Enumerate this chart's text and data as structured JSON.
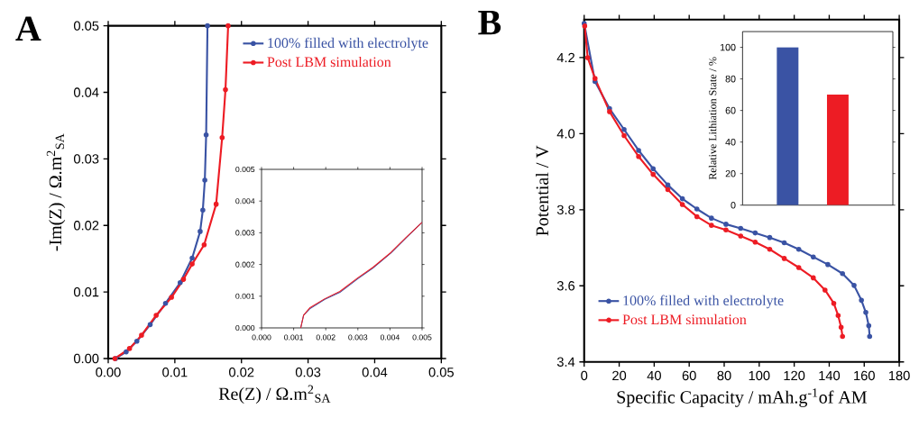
{
  "chart_data": [
    {
      "type": "line",
      "title": "A",
      "xlabel": "Re(Z) / Ω.m$^{2}$$_{SA}$",
      "ylabel": "-Im(Z) / Ω.m$^{2}$$_{SA}$",
      "xlim": [
        0,
        0.05
      ],
      "ylim": [
        0,
        0.05
      ],
      "xticks": [
        {
          "value": 0,
          "label": "0.00"
        },
        {
          "value": 0.01,
          "label": "0.01"
        },
        {
          "value": 0.02,
          "label": "0.02"
        },
        {
          "value": 0.03,
          "label": "0.03"
        },
        {
          "value": 0.04,
          "label": "0.04"
        },
        {
          "value": 0.05,
          "label": "0.05"
        }
      ],
      "yticks": [
        {
          "value": 0,
          "label": "0.00"
        },
        {
          "value": 0.01,
          "label": "0.01"
        },
        {
          "value": 0.02,
          "label": "0.02"
        },
        {
          "value": 0.03,
          "label": "0.03"
        },
        {
          "value": 0.04,
          "label": "0.04"
        },
        {
          "value": 0.05,
          "label": "0.05"
        }
      ],
      "legend": "top right",
      "marker": "circle",
      "series": [
        {
          "name": "100%  filled with electrolyte",
          "color": "#3a53a4",
          "x": [
            0.0011,
            0.0027,
            0.0043,
            0.0063,
            0.0086,
            0.0108,
            0.0126,
            0.0138,
            0.0142,
            0.0145,
            0.0147,
            0.0149
          ],
          "values": [
            0,
            0.001,
            0.0026,
            0.0051,
            0.0083,
            0.0114,
            0.0151,
            0.0191,
            0.0223,
            0.0268,
            0.0336,
            0.05
          ]
        },
        {
          "name": "Post LBM simulation",
          "color": "#ed1c24",
          "x": [
            0.001,
            0.0032,
            0.005,
            0.0072,
            0.0095,
            0.0113,
            0.0126,
            0.0144,
            0.0162,
            0.0171,
            0.0176,
            0.018
          ],
          "values": [
            0,
            0.0015,
            0.0035,
            0.0065,
            0.0092,
            0.0119,
            0.0142,
            0.0171,
            0.0232,
            0.0332,
            0.0404,
            0.05
          ]
        }
      ]
    },
    {
      "type": "line",
      "xlim": [
        0,
        0.005
      ],
      "ylim": [
        0,
        0.005
      ],
      "xticks": [
        {
          "value": 0,
          "label": "0.000"
        },
        {
          "value": 0.001,
          "label": "0.001"
        },
        {
          "value": 0.002,
          "label": "0.002"
        },
        {
          "value": 0.003,
          "label": "0.003"
        },
        {
          "value": 0.004,
          "label": "0.004"
        },
        {
          "value": 0.005,
          "label": "0.005"
        }
      ],
      "yticks": [
        {
          "value": 0,
          "label": "0.000"
        },
        {
          "value": 0.001,
          "label": "0.001"
        },
        {
          "value": 0.002,
          "label": "0.002"
        },
        {
          "value": 0.003,
          "label": "0.003"
        },
        {
          "value": 0.004,
          "label": "0.004"
        },
        {
          "value": 0.005,
          "label": "0.005"
        }
      ],
      "series": [
        {
          "color": "#3a53a4",
          "x": [
            0.00122,
            0.00131,
            0.0015,
            0.00197,
            0.00244,
            0.003,
            0.00347,
            0.00403,
            0.0045,
            0.005
          ],
          "values": [
            0,
            0.0004,
            0.0006,
            0.0009,
            0.00112,
            0.00155,
            0.00189,
            0.00236,
            0.00284,
            0.00333
          ]
        },
        {
          "color": "#ed1c24",
          "x": [
            0.00122,
            0.00131,
            0.0015,
            0.00197,
            0.00244,
            0.003,
            0.00347,
            0.00403,
            0.0045,
            0.005
          ],
          "values": [
            0,
            0.0004,
            0.00063,
            0.00092,
            0.00115,
            0.00158,
            0.00191,
            0.00238,
            0.00285,
            0.00333
          ]
        }
      ]
    },
    {
      "type": "line",
      "title": "B",
      "xlabel": "Specific Capacity / mAh.g$^{-1}$of AM",
      "ylabel": "Potential / V",
      "xlim": [
        0,
        180
      ],
      "ylim": [
        3.4,
        4.3
      ],
      "xticks": [
        0,
        20,
        40,
        60,
        80,
        100,
        120,
        140,
        160,
        180
      ],
      "yticks": [
        {
          "value": 3.4,
          "label": "3.4"
        },
        {
          "value": 3.6,
          "label": "3.6"
        },
        {
          "value": 3.8,
          "label": "3.8"
        },
        {
          "value": 4.0,
          "label": "4.0"
        },
        {
          "value": 4.2,
          "label": "4.2"
        }
      ],
      "legend": "bottom left",
      "marker": "circle",
      "series": [
        {
          "name": "100%  filled with electrolyte",
          "color": "#3a53a4",
          "x": [
            0,
            6.2,
            14.5,
            22.8,
            31.1,
            39.4,
            47.8,
            56.1,
            64.4,
            72.7,
            81,
            89.4,
            97.7,
            106,
            114.3,
            122.6,
            130.9,
            139.2,
            147.6,
            154.2,
            158.4,
            160.9,
            162.6,
            163.1
          ],
          "values": [
            4.29,
            4.137,
            4.066,
            4.011,
            3.956,
            3.908,
            3.865,
            3.829,
            3.802,
            3.778,
            3.762,
            3.751,
            3.739,
            3.727,
            3.713,
            3.696,
            3.676,
            3.656,
            3.632,
            3.601,
            3.562,
            3.53,
            3.495,
            3.467
          ]
        },
        {
          "name": "Post LBM simulation",
          "color": "#ed1c24",
          "x": [
            0.3,
            2,
            6.2,
            14.5,
            22.8,
            31.1,
            39.4,
            47.8,
            56.1,
            64.4,
            72.7,
            81,
            89.4,
            97.7,
            106,
            114.3,
            122.6,
            130.9,
            137.6,
            142.6,
            145.1,
            146.8,
            147.6
          ],
          "values": [
            4.283,
            4.2,
            4.145,
            4.058,
            3.995,
            3.94,
            3.893,
            3.853,
            3.814,
            3.782,
            3.759,
            3.747,
            3.731,
            3.715,
            3.696,
            3.672,
            3.648,
            3.621,
            3.589,
            3.554,
            3.522,
            3.491,
            3.467
          ]
        }
      ]
    },
    {
      "type": "bar",
      "ylabel": "Relative Lithiation State / %",
      "categories": [
        null,
        null
      ],
      "values": [
        100,
        70
      ],
      "colors": [
        "#3a53a4",
        "#ed1c24"
      ],
      "ylim": [
        0,
        110
      ],
      "yticks": [
        0,
        20,
        40,
        60,
        80,
        100
      ]
    }
  ]
}
